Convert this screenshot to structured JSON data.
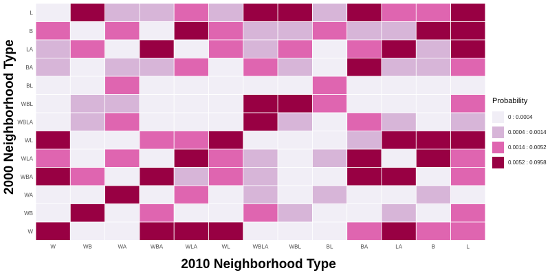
{
  "chart_data": {
    "type": "heatmap",
    "title": "",
    "xlabel": "2010 Neighborhood Type",
    "ylabel": "2000 Neighborhood Type",
    "x_categories": [
      "W",
      "WB",
      "WA",
      "WBA",
      "WLA",
      "WL",
      "WBLA",
      "WBL",
      "BL",
      "BA",
      "LA",
      "B",
      "L"
    ],
    "y_categories_top_to_bottom": [
      "L",
      "B",
      "LA",
      "BA",
      "BL",
      "WBL",
      "WBLA",
      "WL",
      "WLA",
      "WBA",
      "WA",
      "WB",
      "W"
    ],
    "bins": [
      {
        "label": "0 : 0.0004",
        "color": "#f1eef6"
      },
      {
        "label": "0.0004 : 0.0014",
        "color": "#d7b5d8"
      },
      {
        "label": "0.0014 : 0.0052",
        "color": "#df65b0"
      },
      {
        "label": "0.0052 : 0.0958",
        "color": "#980043"
      }
    ],
    "cell_bins_top_to_bottom": [
      [
        0,
        3,
        1,
        1,
        2,
        1,
        3,
        3,
        1,
        3,
        2,
        2,
        3
      ],
      [
        2,
        0,
        2,
        0,
        3,
        2,
        1,
        1,
        2,
        1,
        1,
        3,
        3
      ],
      [
        1,
        2,
        0,
        3,
        0,
        2,
        1,
        2,
        0,
        2,
        3,
        1,
        3
      ],
      [
        1,
        0,
        1,
        1,
        2,
        0,
        2,
        1,
        0,
        3,
        1,
        1,
        2
      ],
      [
        0,
        0,
        2,
        0,
        0,
        0,
        0,
        0,
        2,
        0,
        0,
        0,
        0
      ],
      [
        0,
        1,
        1,
        0,
        0,
        0,
        3,
        3,
        2,
        0,
        0,
        0,
        2
      ],
      [
        0,
        1,
        2,
        0,
        0,
        0,
        3,
        1,
        0,
        2,
        1,
        0,
        1
      ],
      [
        3,
        0,
        0,
        2,
        2,
        3,
        0,
        0,
        0,
        1,
        3,
        3,
        3
      ],
      [
        2,
        0,
        2,
        0,
        3,
        2,
        1,
        0,
        1,
        3,
        0,
        3,
        2
      ],
      [
        3,
        2,
        0,
        3,
        1,
        2,
        1,
        0,
        0,
        3,
        3,
        0,
        2
      ],
      [
        0,
        0,
        3,
        0,
        2,
        0,
        1,
        0,
        1,
        0,
        0,
        1,
        0
      ],
      [
        0,
        3,
        0,
        2,
        0,
        0,
        2,
        1,
        0,
        0,
        1,
        0,
        2
      ],
      [
        3,
        0,
        0,
        3,
        3,
        3,
        0,
        0,
        0,
        2,
        3,
        2,
        2
      ]
    ],
    "legend": {
      "title": "Probability",
      "position": "right"
    },
    "grid": false
  }
}
